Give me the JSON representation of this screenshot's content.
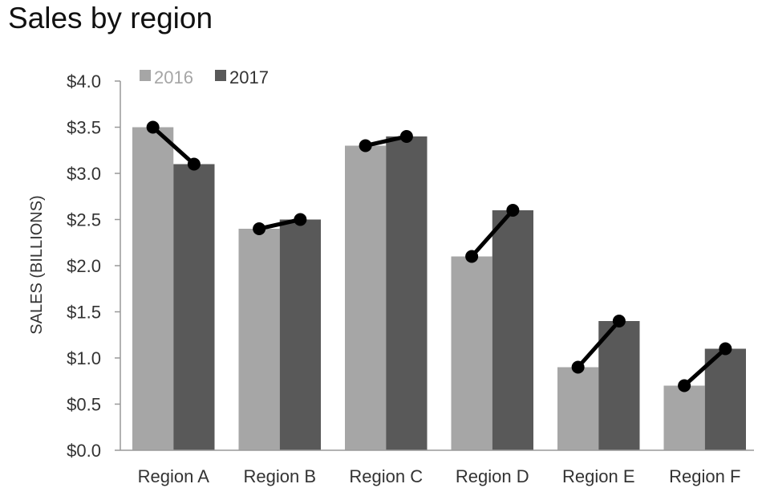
{
  "chart_data": {
    "type": "bar",
    "title": "Sales by region",
    "xlabel": "",
    "ylabel": "SALES (BILLIONS)",
    "categories": [
      "Region A",
      "Region B",
      "Region C",
      "Region D",
      "Region E",
      "Region F"
    ],
    "series": [
      {
        "name": "2016",
        "values": [
          3.5,
          2.4,
          3.3,
          2.1,
          0.9,
          0.7
        ],
        "color": "#a6a6a6"
      },
      {
        "name": "2017",
        "values": [
          3.1,
          2.5,
          3.4,
          2.6,
          1.4,
          1.1
        ],
        "color": "#595959"
      }
    ],
    "overlay": {
      "type": "slope-line",
      "color": "#000000",
      "description_of_marks": "dot at each bar value joined by line"
    },
    "ylim": [
      0,
      4
    ],
    "yticks": [
      "$0.0",
      "$0.5",
      "$1.0",
      "$1.5",
      "$2.0",
      "$2.5",
      "$3.0",
      "$3.5",
      "$4.0"
    ],
    "ytick_values": [
      0,
      0.5,
      1,
      1.5,
      2,
      2.5,
      3,
      3.5,
      4
    ],
    "grid": false,
    "legend_position": "top-left"
  },
  "colors": {
    "axis": "#999999",
    "tick_text": "#333333",
    "legend_2016_text": "#a6a6a6",
    "legend_2017_text": "#333333"
  }
}
